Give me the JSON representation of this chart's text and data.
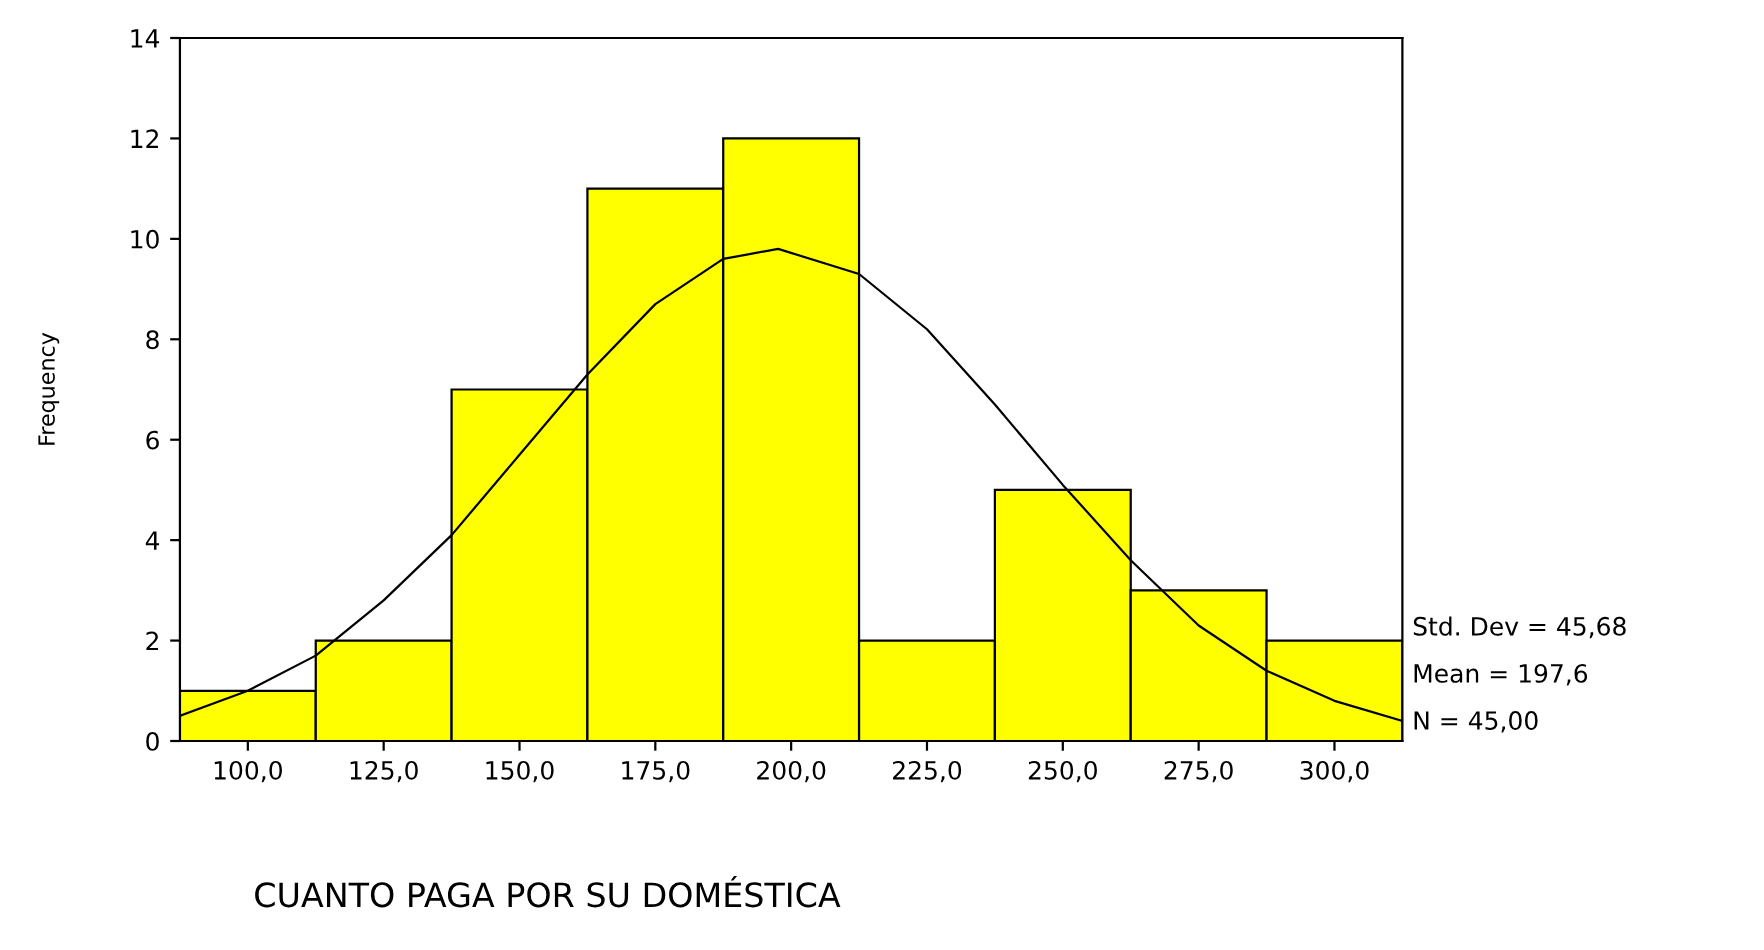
{
  "chart_data": {
    "type": "histogram",
    "xlabel": "CUANTO PAGA POR SU DOMÉSTICA",
    "ylabel": "Frequency",
    "series": [
      {
        "type": "histogram",
        "bins": [
          87.5,
          112.5,
          137.5,
          162.5,
          187.5,
          212.5,
          237.5,
          262.5,
          287.5,
          312.5
        ],
        "values": [
          1,
          2,
          7,
          11,
          12,
          2,
          5,
          3,
          2
        ],
        "color": "#ffff00"
      },
      {
        "type": "line",
        "x": [
          87.5,
          100,
          112.5,
          125,
          137.5,
          150,
          162.5,
          175,
          187.5,
          197.6,
          212.5,
          225,
          237.5,
          250,
          262.5,
          275,
          287.5,
          300,
          312.5
        ],
        "values": [
          0.5,
          1.0,
          1.7,
          2.8,
          4.1,
          5.7,
          7.3,
          8.7,
          9.6,
          9.8,
          9.3,
          8.2,
          6.7,
          5.1,
          3.6,
          2.3,
          1.4,
          0.8,
          0.4
        ],
        "color": "#000000"
      }
    ],
    "xlim": [
      87.5,
      312.5
    ],
    "xticks": [
      {
        "value": 100,
        "label": "100,0"
      },
      {
        "value": 125,
        "label": "125,0"
      },
      {
        "value": 150,
        "label": "150,0"
      },
      {
        "value": 175,
        "label": "175,0"
      },
      {
        "value": 200,
        "label": "200,0"
      },
      {
        "value": 225,
        "label": "225,0"
      },
      {
        "value": 250,
        "label": "250,0"
      },
      {
        "value": 275,
        "label": "275,0"
      },
      {
        "value": 300,
        "label": "300,0"
      }
    ],
    "ylim": [
      0,
      14
    ],
    "yticks": [
      0,
      2,
      4,
      6,
      8,
      10,
      12,
      14
    ],
    "annotations": [
      "Std. Dev = 45,68",
      "Mean = 197,6",
      "N = 45,00"
    ]
  }
}
